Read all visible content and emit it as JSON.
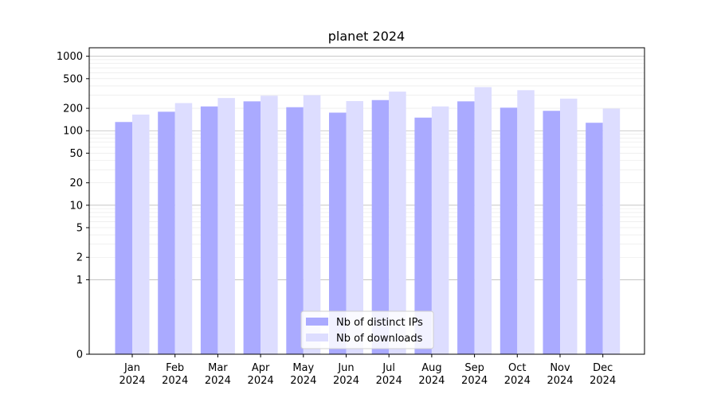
{
  "chart_data": {
    "type": "bar",
    "title": "planet 2024",
    "xlabel": "",
    "ylabel": "",
    "yscale": "symlog",
    "ylim": [
      0,
      1300
    ],
    "yticks": [
      0,
      1,
      2,
      5,
      10,
      20,
      50,
      100,
      200,
      500,
      1000
    ],
    "ytick_labels": [
      "0",
      "1",
      "2",
      "5",
      "10",
      "20",
      "50",
      "100",
      "200",
      "500",
      "1000"
    ],
    "grid": true,
    "legend_position": "bottom-center",
    "categories": [
      {
        "month": "Jan",
        "year": "2024"
      },
      {
        "month": "Feb",
        "year": "2024"
      },
      {
        "month": "Mar",
        "year": "2024"
      },
      {
        "month": "Apr",
        "year": "2024"
      },
      {
        "month": "May",
        "year": "2024"
      },
      {
        "month": "Jun",
        "year": "2024"
      },
      {
        "month": "Jul",
        "year": "2024"
      },
      {
        "month": "Aug",
        "year": "2024"
      },
      {
        "month": "Sep",
        "year": "2024"
      },
      {
        "month": "Oct",
        "year": "2024"
      },
      {
        "month": "Nov",
        "year": "2024"
      },
      {
        "month": "Dec",
        "year": "2024"
      }
    ],
    "series": [
      {
        "name": "Nb of distinct IPs",
        "color": "#aaaaff",
        "values": [
          131,
          180,
          212,
          248,
          207,
          175,
          258,
          150,
          248,
          204,
          185,
          128
        ]
      },
      {
        "name": "Nb of downloads",
        "color": "#ddddff",
        "values": [
          165,
          235,
          275,
          295,
          300,
          250,
          335,
          212,
          385,
          350,
          270,
          198
        ]
      }
    ]
  }
}
